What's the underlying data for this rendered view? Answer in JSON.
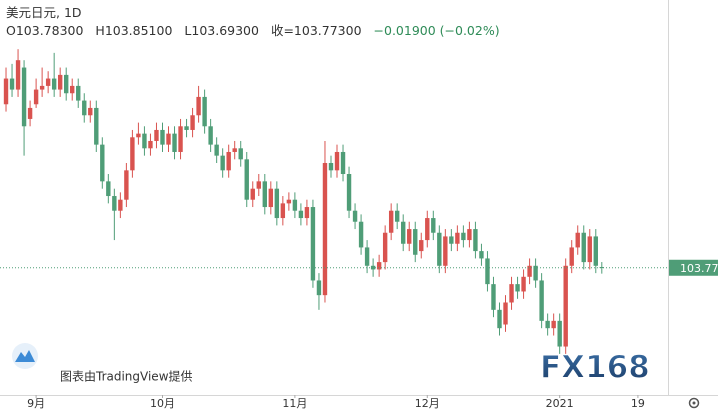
{
  "header": {
    "symbol": "美元日元, 1D",
    "open": "O103.78300",
    "high": "H103.85100",
    "low": "L103.69300",
    "close": "收=103.77300",
    "change": "−0.01900 (−0.02%)"
  },
  "watermark": "图表由TradingView提供",
  "watermark_logo": "FX168",
  "chart_data": {
    "type": "candlestick",
    "up_color": "#d9534f",
    "down_color": "#4f9d77",
    "xlim": [
      -1,
      110
    ],
    "ylim": [
      102.04,
      107.42
    ],
    "xticks": [
      {
        "value": 5,
        "label": "9月"
      },
      {
        "value": 26,
        "label": "10月"
      },
      {
        "value": 48,
        "label": "11月"
      },
      {
        "value": 70,
        "label": "12月"
      },
      {
        "value": 92,
        "label": "2021"
      },
      {
        "value": 105,
        "label": "19"
      }
    ],
    "last_price": {
      "value": 103.773,
      "label": "103.77"
    },
    "open": [
      106.0,
      106.35,
      106.2,
      106.5,
      105.8,
      106.0,
      106.2,
      106.25,
      106.35,
      106.2,
      106.4,
      106.15,
      106.25,
      106.05,
      105.85,
      105.95,
      105.45,
      104.95,
      104.75,
      104.55,
      104.7,
      105.1,
      105.55,
      105.6,
      105.4,
      105.5,
      105.65,
      105.45,
      105.6,
      105.35,
      105.7,
      105.65,
      105.85,
      106.1,
      105.7,
      105.45,
      105.3,
      105.1,
      105.35,
      105.4,
      105.25,
      104.7,
      104.85,
      104.95,
      104.6,
      104.85,
      104.45,
      104.65,
      104.7,
      104.55,
      104.45,
      104.6,
      103.6,
      103.4,
      105.2,
      105.1,
      105.35,
      105.05,
      104.55,
      104.4,
      104.05,
      103.8,
      103.75,
      103.85,
      104.25,
      104.55,
      104.4,
      104.1,
      104.3,
      104.0,
      104.15,
      104.45,
      104.25,
      103.8,
      104.2,
      104.1,
      104.25,
      104.15,
      104.3,
      104.0,
      103.9,
      103.55,
      103.2,
      103.0,
      103.3,
      103.55,
      103.45,
      103.65,
      103.8,
      103.6,
      103.05,
      102.95,
      103.05,
      102.7,
      103.8,
      104.05,
      104.25,
      103.85,
      104.2,
      103.783
    ],
    "high": [
      106.5,
      106.55,
      106.75,
      106.6,
      106.05,
      106.35,
      106.5,
      106.45,
      106.7,
      106.5,
      106.5,
      106.35,
      106.35,
      106.15,
      106.05,
      106.05,
      105.55,
      105.05,
      104.85,
      104.8,
      105.2,
      105.65,
      105.75,
      105.7,
      105.6,
      105.75,
      105.75,
      105.7,
      105.7,
      105.8,
      105.8,
      105.95,
      106.25,
      106.2,
      105.8,
      105.55,
      105.4,
      105.45,
      105.5,
      105.5,
      105.35,
      104.95,
      105.05,
      105.05,
      104.95,
      104.95,
      104.75,
      104.8,
      104.8,
      104.65,
      104.7,
      104.7,
      103.7,
      105.5,
      105.3,
      105.45,
      105.45,
      105.15,
      104.65,
      104.5,
      104.15,
      103.9,
      103.95,
      104.35,
      104.65,
      104.65,
      104.5,
      104.4,
      104.4,
      104.25,
      104.55,
      104.55,
      104.35,
      104.3,
      104.3,
      104.35,
      104.35,
      104.4,
      104.4,
      104.1,
      104.0,
      103.65,
      103.3,
      103.4,
      103.65,
      103.65,
      103.75,
      103.9,
      103.9,
      103.7,
      103.15,
      103.15,
      103.15,
      103.9,
      104.15,
      104.35,
      104.35,
      104.3,
      104.3,
      103.851
    ],
    "low": [
      105.9,
      106.1,
      106.1,
      105.3,
      105.7,
      105.95,
      106.1,
      106.15,
      106.1,
      106.1,
      106.05,
      106.05,
      105.95,
      105.75,
      105.75,
      105.35,
      104.85,
      104.65,
      104.15,
      104.45,
      104.6,
      105.0,
      105.45,
      105.3,
      105.3,
      105.4,
      105.35,
      105.35,
      105.25,
      105.25,
      105.55,
      105.55,
      105.75,
      105.6,
      105.35,
      105.2,
      105.0,
      105.0,
      105.25,
      105.15,
      104.6,
      104.6,
      104.75,
      104.5,
      104.5,
      104.35,
      104.35,
      104.55,
      104.45,
      104.35,
      104.35,
      103.5,
      103.2,
      103.3,
      105.0,
      105.0,
      104.95,
      104.45,
      104.3,
      103.95,
      103.7,
      103.65,
      103.65,
      103.75,
      104.15,
      104.3,
      104.0,
      104.0,
      103.85,
      103.9,
      104.05,
      104.15,
      103.7,
      103.7,
      104.0,
      104.0,
      104.05,
      104.05,
      103.9,
      103.8,
      103.45,
      103.1,
      102.85,
      102.9,
      103.2,
      103.35,
      103.35,
      103.55,
      103.5,
      102.95,
      102.85,
      102.85,
      102.6,
      102.6,
      103.7,
      103.95,
      103.75,
      103.75,
      103.7,
      103.693
    ],
    "close": [
      106.35,
      106.2,
      106.6,
      105.7,
      105.95,
      106.2,
      106.25,
      106.35,
      106.2,
      106.4,
      106.15,
      106.25,
      106.05,
      105.85,
      105.95,
      105.45,
      104.95,
      104.75,
      104.55,
      104.7,
      105.1,
      105.55,
      105.6,
      105.4,
      105.5,
      105.65,
      105.45,
      105.6,
      105.35,
      105.7,
      105.65,
      105.85,
      106.1,
      105.7,
      105.45,
      105.3,
      105.1,
      105.35,
      105.4,
      105.25,
      104.7,
      104.85,
      104.95,
      104.6,
      104.85,
      104.45,
      104.65,
      104.7,
      104.55,
      104.45,
      104.6,
      103.6,
      103.4,
      105.2,
      105.1,
      105.35,
      105.05,
      104.55,
      104.4,
      104.05,
      103.8,
      103.75,
      103.85,
      104.25,
      104.55,
      104.4,
      104.1,
      104.3,
      103.95,
      104.15,
      104.45,
      104.25,
      103.8,
      104.2,
      104.1,
      104.25,
      104.15,
      104.3,
      104.0,
      103.9,
      103.55,
      103.2,
      102.95,
      103.3,
      103.55,
      103.45,
      103.65,
      103.8,
      103.6,
      103.05,
      102.95,
      103.05,
      102.7,
      103.8,
      104.05,
      104.25,
      103.85,
      104.2,
      103.8,
      103.773
    ]
  }
}
